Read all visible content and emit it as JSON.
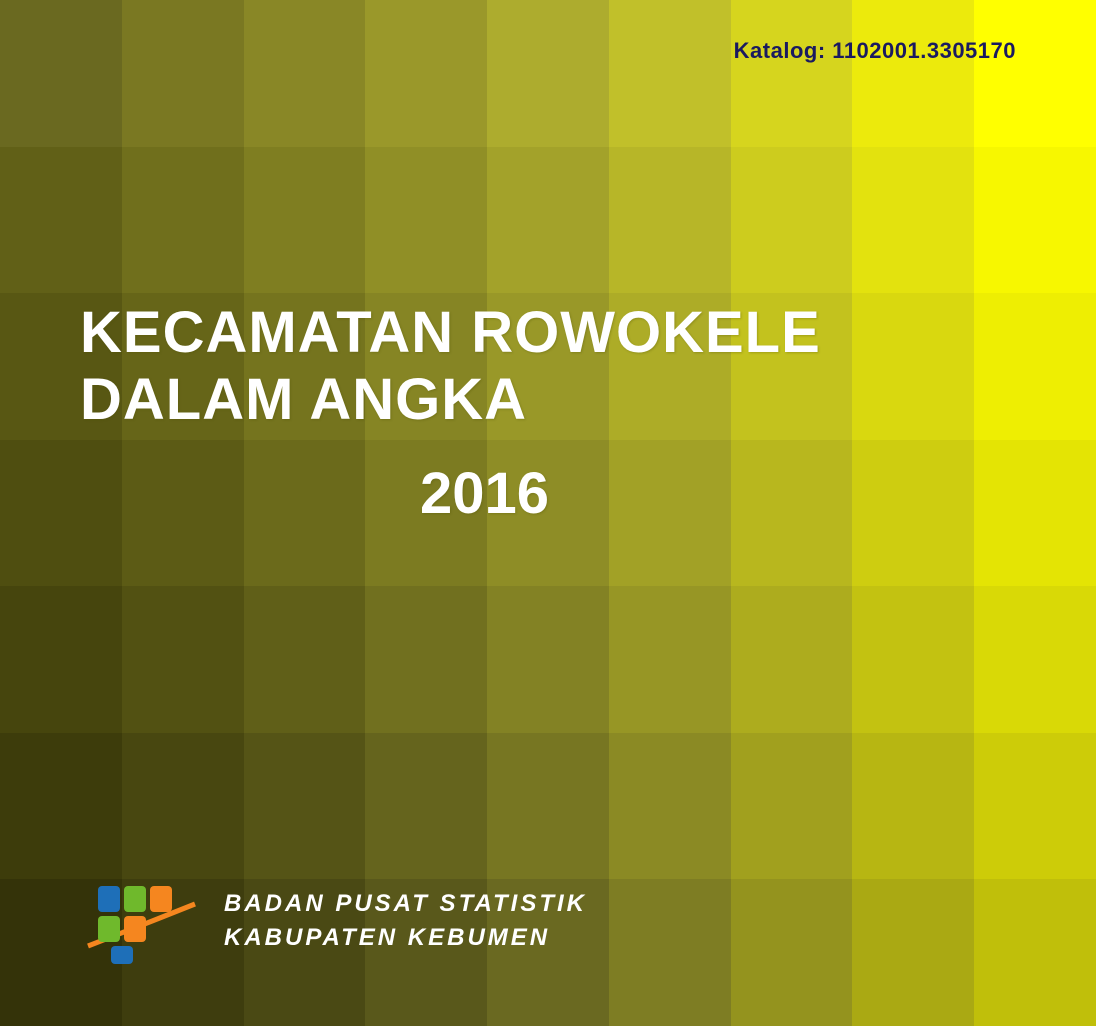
{
  "catalog": {
    "label": "Katalog:",
    "number": "1102001.3305170",
    "text_color": "#1a1a60",
    "font_size": 22,
    "font_weight": "bold"
  },
  "title": {
    "line1": "KECAMATAN ROWOKELE",
    "line2": "DALAM ANGKA",
    "year": "2016",
    "text_color": "#ffffff",
    "font_size": 58,
    "font_family": "Impact"
  },
  "footer": {
    "org_line1": "BADAN PUSAT STATISTIK",
    "org_line2": "KABUPATEN KEBUMEN",
    "text_color": "#ffffff",
    "font_size": 24,
    "font_style": "italic",
    "logo_colors": {
      "blue": "#1e6fb8",
      "green": "#6fb92c",
      "orange": "#f5861f",
      "swoosh": "#f5861f"
    }
  },
  "background": {
    "type": "grid-gradient",
    "description": "7 horizontal bands × 9 vertical cells, each cell a flat color forming an olive-to-yellow gradient from bottom-left (dark olive) to top-right (bright yellow)",
    "bands": 7,
    "cols": 9,
    "colors": [
      [
        "#6a6920",
        "#7a7822",
        "#898726",
        "#9a982a",
        "#adac2e",
        "#c1c02a",
        "#d6d51e",
        "#ecea0c",
        "#ffff00"
      ],
      [
        "#616017",
        "#706f1c",
        "#7f7e21",
        "#908f26",
        "#a3a22a",
        "#b7b628",
        "#cdcc1e",
        "#e3e20e",
        "#f7f700"
      ],
      [
        "#585713",
        "#666518",
        "#75741e",
        "#868524",
        "#999828",
        "#adac27",
        "#c3c21e",
        "#d9d80f",
        "#eeee02"
      ],
      [
        "#4f4e10",
        "#5c5b15",
        "#6b6a1b",
        "#7c7b21",
        "#8e8d26",
        "#a2a126",
        "#b8b71e",
        "#cecd10",
        "#e4e404"
      ],
      [
        "#46450d",
        "#525112",
        "#605f18",
        "#71701f",
        "#838224",
        "#979625",
        "#adac1e",
        "#c3c211",
        "#d9d906"
      ],
      [
        "#3d3c0b",
        "#484710",
        "#555416",
        "#65641d",
        "#777622",
        "#8b8a24",
        "#a1a01e",
        "#b7b612",
        "#cdcc08"
      ],
      [
        "#343309",
        "#3e3d0e",
        "#4a4914",
        "#59581b",
        "#6a6921",
        "#7e7d23",
        "#94931e",
        "#aaa913",
        "#c0bf0a"
      ]
    ]
  }
}
